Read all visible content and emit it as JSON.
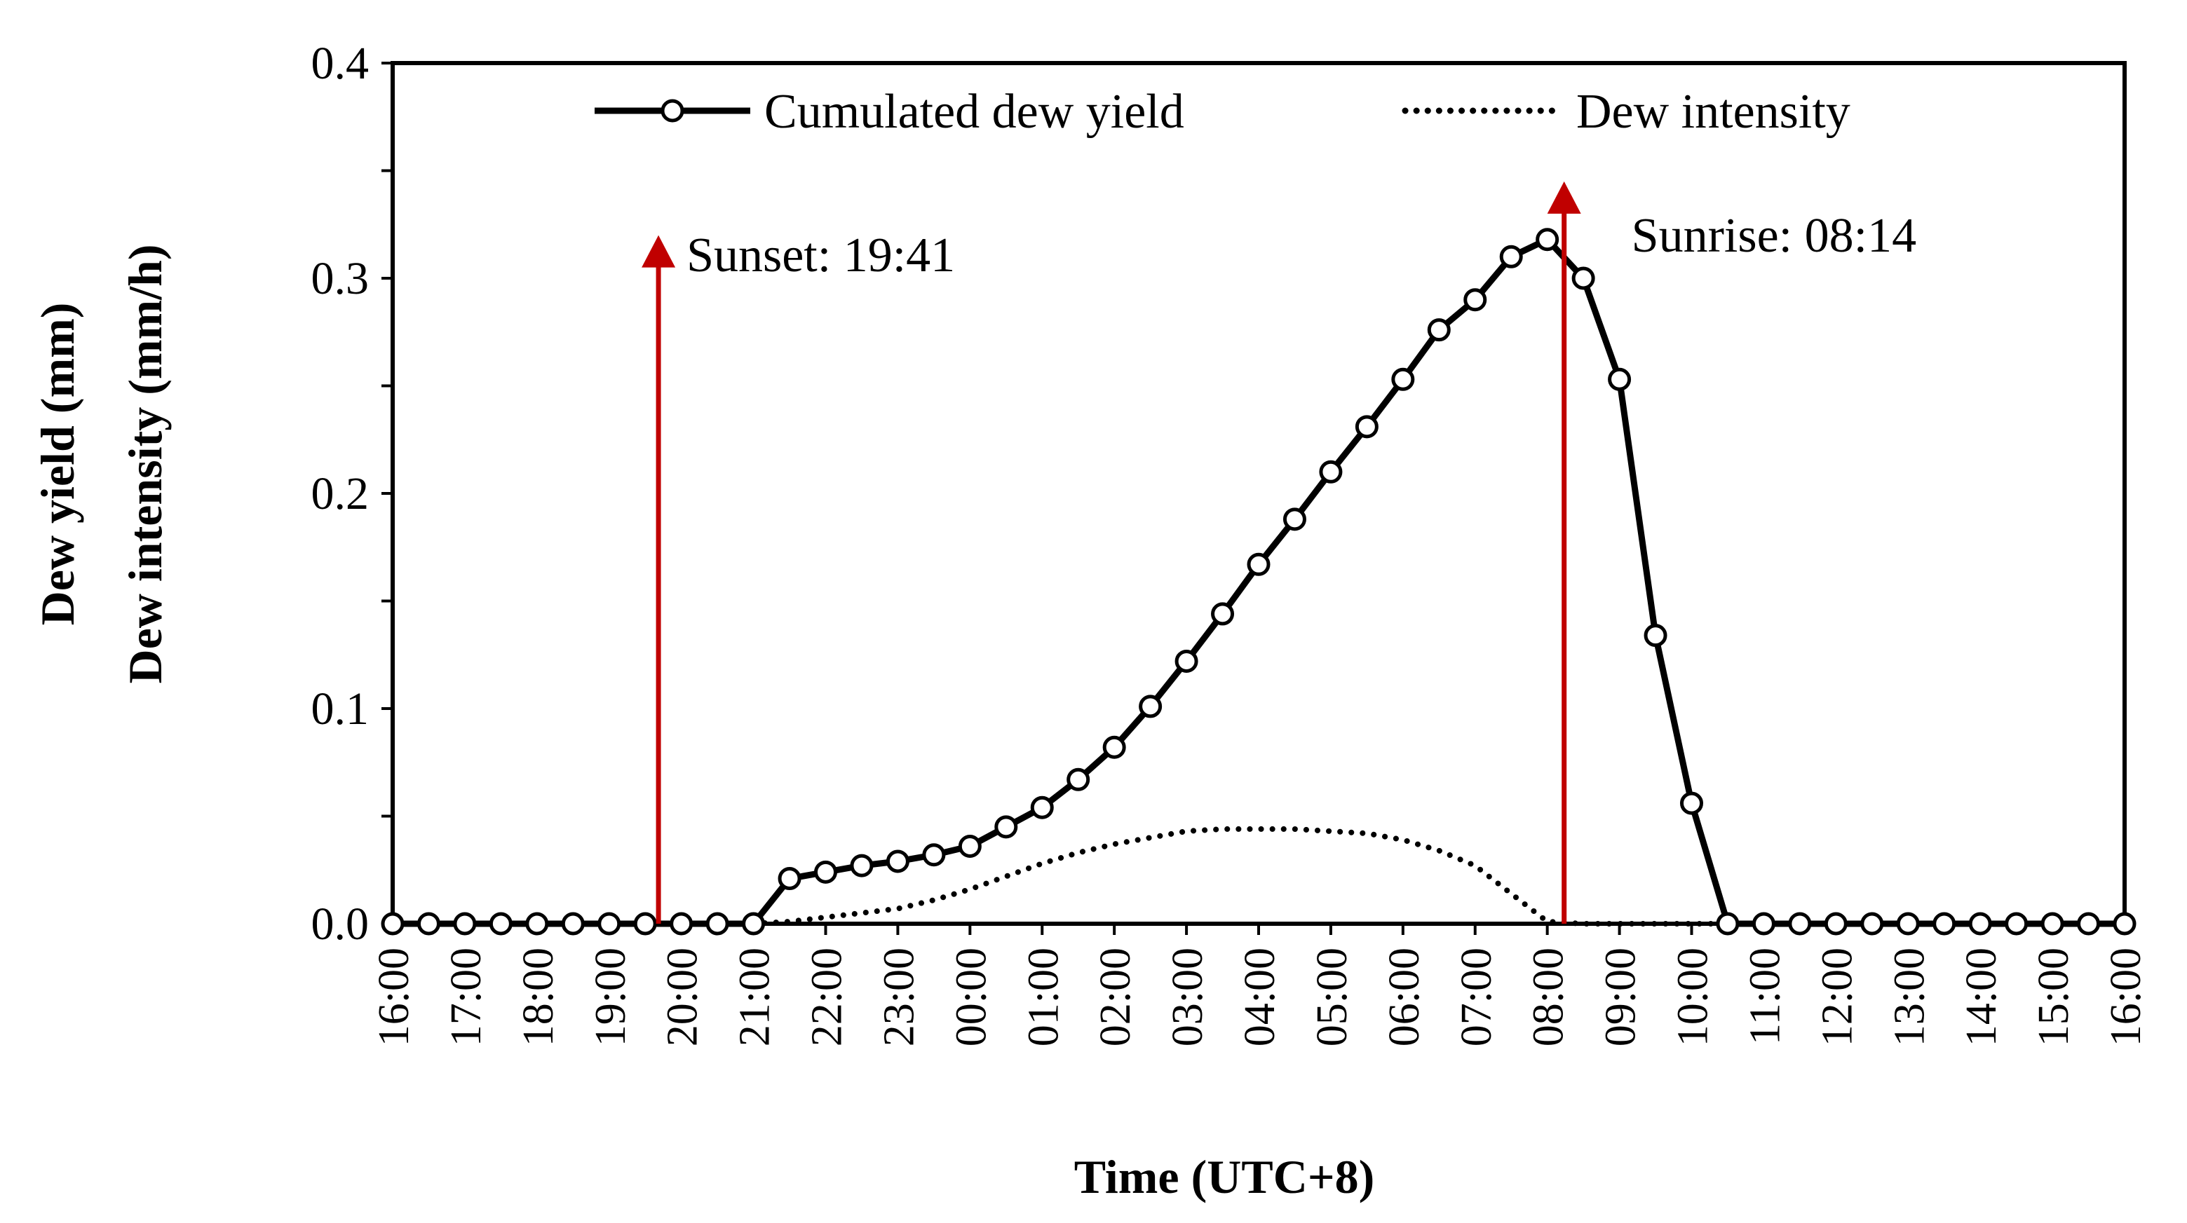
{
  "chart_data": {
    "type": "line",
    "title": "",
    "xlabel": "Time (UTC+8)",
    "ylabel_lines": [
      "Dew yield (mm)",
      "Dew intensity (mm/h)"
    ],
    "ylim": [
      0,
      0.4
    ],
    "y_ticks": [
      "0.0",
      "0.1",
      "0.2",
      "0.3",
      "0.4"
    ],
    "x_tick_labels": [
      "16:00",
      "17:00",
      "18:00",
      "19:00",
      "20:00",
      "21:00",
      "22:00",
      "23:00",
      "00:00",
      "01:00",
      "02:00",
      "03:00",
      "04:00",
      "05:00",
      "06:00",
      "07:00",
      "08:00",
      "09:00",
      "10:00",
      "11:00",
      "12:00",
      "13:00",
      "14:00",
      "15:00",
      "16:00"
    ],
    "x_hours_elapsed_range": [
      0,
      24
    ],
    "legend_position": "top",
    "grid": false,
    "series": [
      {
        "name": "Cumulated dew yield",
        "style": "solid-line-open-circle-markers",
        "color": "#000000",
        "x": [
          "16:00",
          "16:30",
          "17:00",
          "17:30",
          "18:00",
          "18:30",
          "19:00",
          "19:30",
          "20:00",
          "20:30",
          "21:00",
          "21:30",
          "22:00",
          "22:30",
          "23:00",
          "23:30",
          "00:00",
          "00:30",
          "01:00",
          "01:30",
          "02:00",
          "02:30",
          "03:00",
          "03:30",
          "04:00",
          "04:30",
          "05:00",
          "05:30",
          "06:00",
          "06:30",
          "07:00",
          "07:30",
          "08:00",
          "08:30",
          "09:00",
          "09:30",
          "10:00",
          "10:30",
          "11:00",
          "11:30",
          "12:00",
          "12:30",
          "13:00",
          "13:30",
          "14:00",
          "14:30",
          "15:00",
          "15:30",
          "16:00"
        ],
        "values": [
          0,
          0,
          0,
          0,
          0,
          0,
          0,
          0,
          0,
          0,
          0,
          0.021,
          0.024,
          0.027,
          0.029,
          0.032,
          0.036,
          0.045,
          0.054,
          0.067,
          0.082,
          0.101,
          0.122,
          0.144,
          0.167,
          0.188,
          0.21,
          0.231,
          0.253,
          0.276,
          0.29,
          0.31,
          0.318,
          0.3,
          0.253,
          0.134,
          0.056,
          0,
          0,
          0,
          0,
          0,
          0,
          0,
          0,
          0,
          0,
          0,
          0
        ]
      },
      {
        "name": "Dew intensity",
        "style": "dotted-line",
        "color": "#000000",
        "x": [
          "21:00",
          "21:30",
          "22:00",
          "22:30",
          "23:00",
          "23:30",
          "00:00",
          "00:30",
          "01:00",
          "01:30",
          "02:00",
          "02:30",
          "03:00",
          "03:30",
          "04:00",
          "04:30",
          "05:00",
          "05:30",
          "06:00",
          "06:30",
          "07:00",
          "07:30",
          "08:00",
          "08:30",
          "09:00",
          "09:30",
          "10:00",
          "10:30"
        ],
        "values": [
          0,
          0.001,
          0.003,
          0.005,
          0.007,
          0.011,
          0.016,
          0.022,
          0.028,
          0.033,
          0.037,
          0.04,
          0.043,
          0.044,
          0.044,
          0.044,
          0.043,
          0.042,
          0.039,
          0.034,
          0.027,
          0.014,
          0.001,
          0,
          0,
          0,
          0,
          0
        ]
      }
    ],
    "annotations": [
      {
        "label": "Sunset: 19:41",
        "x": "19:41",
        "color": "#C00000",
        "style": "vertical-arrow"
      },
      {
        "label": "Sunrise: 08:14",
        "x": "08:14",
        "color": "#C00000",
        "style": "vertical-arrow"
      }
    ]
  }
}
